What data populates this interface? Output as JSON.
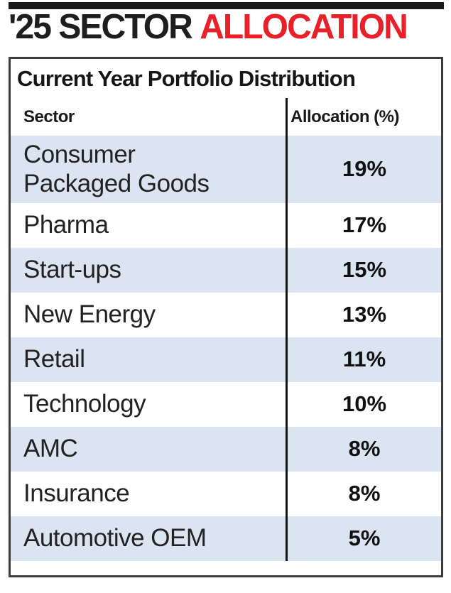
{
  "header": {
    "title_black": "'25 SECTOR",
    "title_red": "ALLOCATION"
  },
  "table": {
    "subtitle": "Current Year Portfolio Distribution",
    "columns": {
      "sector": "Sector",
      "allocation": "Allocation (%)"
    },
    "rows": [
      {
        "sector": "Consumer\nPackaged Goods",
        "allocation": "19%"
      },
      {
        "sector": "Pharma",
        "allocation": "17%"
      },
      {
        "sector": "Start-ups",
        "allocation": "15%"
      },
      {
        "sector": "New Energy",
        "allocation": "13%"
      },
      {
        "sector": "Retail",
        "allocation": "11%"
      },
      {
        "sector": "Technology",
        "allocation": "10%"
      },
      {
        "sector": "AMC",
        "allocation": "8%"
      },
      {
        "sector": "Insurance",
        "allocation": "8%"
      },
      {
        "sector": "Automotive OEM",
        "allocation": "5%"
      }
    ]
  },
  "colors": {
    "accent_red": "#e8202a",
    "row_blue": "#dbe5f2",
    "text_black": "#1e1e1e",
    "border_gray": "#3d3d3d"
  },
  "chart_data": {
    "type": "table",
    "title": "'25 SECTOR ALLOCATION",
    "subtitle": "Current Year Portfolio Distribution",
    "columns": [
      "Sector",
      "Allocation (%)"
    ],
    "categories": [
      "Consumer Packaged Goods",
      "Pharma",
      "Start-ups",
      "New Energy",
      "Retail",
      "Technology",
      "AMC",
      "Insurance",
      "Automotive OEM"
    ],
    "values": [
      19,
      17,
      15,
      13,
      11,
      10,
      8,
      8,
      5
    ],
    "unit": "%",
    "row_shading": "alternating starting with blue"
  }
}
